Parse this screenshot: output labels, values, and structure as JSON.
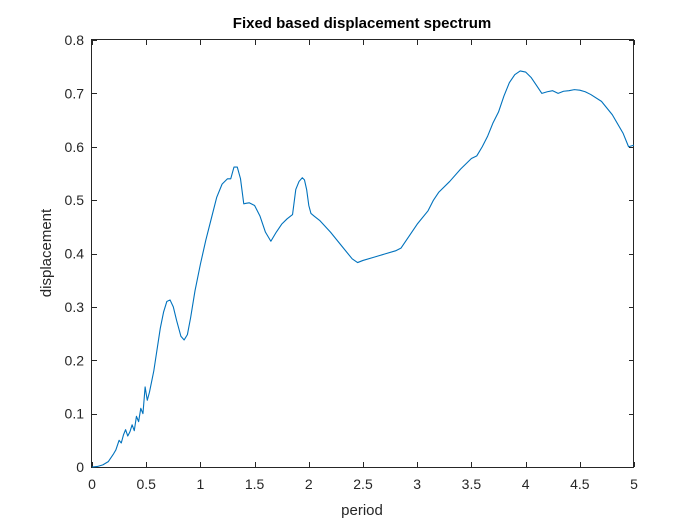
{
  "chart_data": {
    "type": "line",
    "title": "Fixed based displacement spectrum",
    "xlabel": "period",
    "ylabel": "displacement",
    "xlim": [
      0,
      5
    ],
    "ylim": [
      0,
      0.8
    ],
    "grid": false,
    "legend": "none",
    "xticks": [
      0,
      0.5,
      1,
      1.5,
      2,
      2.5,
      3,
      3.5,
      4,
      4.5,
      5
    ],
    "xtick_labels": [
      "0",
      "0.5",
      "1",
      "1.5",
      "2",
      "2.5",
      "3",
      "3.5",
      "4",
      "4.5",
      "5"
    ],
    "yticks": [
      0,
      0.1,
      0.2,
      0.3,
      0.4,
      0.5,
      0.6,
      0.7,
      0.8
    ],
    "ytick_labels": [
      "0",
      "0.1",
      "0.2",
      "0.3",
      "0.4",
      "0.5",
      "0.6",
      "0.7",
      "0.8"
    ],
    "series": [
      {
        "color": "#0072BD",
        "x": [
          0,
          0.05,
          0.1,
          0.15,
          0.2,
          0.22,
          0.25,
          0.27,
          0.29,
          0.31,
          0.33,
          0.35,
          0.37,
          0.39,
          0.41,
          0.43,
          0.45,
          0.47,
          0.49,
          0.51,
          0.53,
          0.55,
          0.57,
          0.6,
          0.63,
          0.66,
          0.69,
          0.72,
          0.75,
          0.78,
          0.82,
          0.85,
          0.88,
          0.91,
          0.95,
          1.0,
          1.05,
          1.1,
          1.15,
          1.2,
          1.25,
          1.28,
          1.31,
          1.34,
          1.37,
          1.4,
          1.42,
          1.45,
          1.5,
          1.55,
          1.6,
          1.65,
          1.7,
          1.75,
          1.8,
          1.85,
          1.88,
          1.91,
          1.94,
          1.96,
          1.98,
          2.0,
          2.02,
          2.05,
          2.1,
          2.2,
          2.3,
          2.4,
          2.45,
          2.5,
          2.6,
          2.7,
          2.8,
          2.85,
          2.9,
          3.0,
          3.1,
          3.15,
          3.2,
          3.3,
          3.4,
          3.5,
          3.55,
          3.6,
          3.65,
          3.7,
          3.75,
          3.8,
          3.85,
          3.9,
          3.95,
          4.0,
          4.05,
          4.1,
          4.15,
          4.2,
          4.25,
          4.3,
          4.35,
          4.4,
          4.45,
          4.5,
          4.55,
          4.6,
          4.7,
          4.8,
          4.9,
          4.95,
          5.0
        ],
        "y": [
          0,
          0.001,
          0.004,
          0.01,
          0.025,
          0.032,
          0.05,
          0.045,
          0.06,
          0.07,
          0.058,
          0.066,
          0.079,
          0.068,
          0.095,
          0.085,
          0.11,
          0.1,
          0.15,
          0.125,
          0.14,
          0.16,
          0.18,
          0.22,
          0.26,
          0.29,
          0.31,
          0.313,
          0.3,
          0.275,
          0.245,
          0.238,
          0.248,
          0.28,
          0.33,
          0.38,
          0.425,
          0.465,
          0.505,
          0.53,
          0.54,
          0.54,
          0.562,
          0.562,
          0.54,
          0.493,
          0.494,
          0.495,
          0.49,
          0.47,
          0.44,
          0.423,
          0.44,
          0.455,
          0.465,
          0.473,
          0.52,
          0.535,
          0.542,
          0.538,
          0.52,
          0.49,
          0.475,
          0.47,
          0.462,
          0.44,
          0.415,
          0.39,
          0.383,
          0.387,
          0.393,
          0.399,
          0.405,
          0.41,
          0.425,
          0.455,
          0.48,
          0.5,
          0.515,
          0.535,
          0.558,
          0.578,
          0.583,
          0.6,
          0.62,
          0.645,
          0.665,
          0.695,
          0.72,
          0.735,
          0.742,
          0.74,
          0.73,
          0.715,
          0.7,
          0.703,
          0.705,
          0.7,
          0.704,
          0.705,
          0.707,
          0.706,
          0.703,
          0.698,
          0.685,
          0.66,
          0.625,
          0.6,
          0.603
        ]
      }
    ]
  }
}
